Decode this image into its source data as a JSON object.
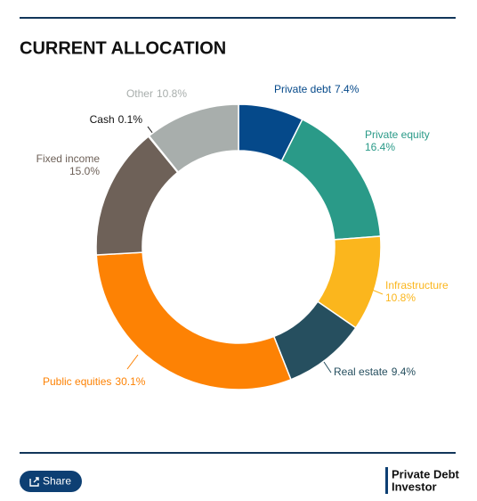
{
  "chart_data": {
    "type": "donut",
    "title": "CURRENT ALLOCATION",
    "categories": [
      "Private debt",
      "Private equity",
      "Infrastructure",
      "Real estate",
      "Public equities",
      "Fixed income",
      "Cash",
      "Other"
    ],
    "values": [
      7.4,
      16.4,
      10.8,
      9.4,
      30.1,
      15.0,
      0.1,
      10.8
    ],
    "value_labels": [
      "7.4%",
      "16.4%",
      "10.8%",
      "9.4%",
      "30.1%",
      "15.0%",
      "0.1%",
      "10.8%"
    ],
    "colors": [
      "#05498a",
      "#2a9a88",
      "#fbb61d",
      "#264f5f",
      "#fd8204",
      "#6e6158",
      "#f2f2f2",
      "#a8aeac"
    ],
    "label_colors": [
      "#05498a",
      "#2a9a88",
      "#fbb61d",
      "#264f5f",
      "#fd8204",
      "#6e6158",
      "#111111",
      "#a8aeac"
    ]
  },
  "footer": {
    "share_button": "Share",
    "brand_line1": "Private Debt",
    "brand_line2": "Investor"
  }
}
